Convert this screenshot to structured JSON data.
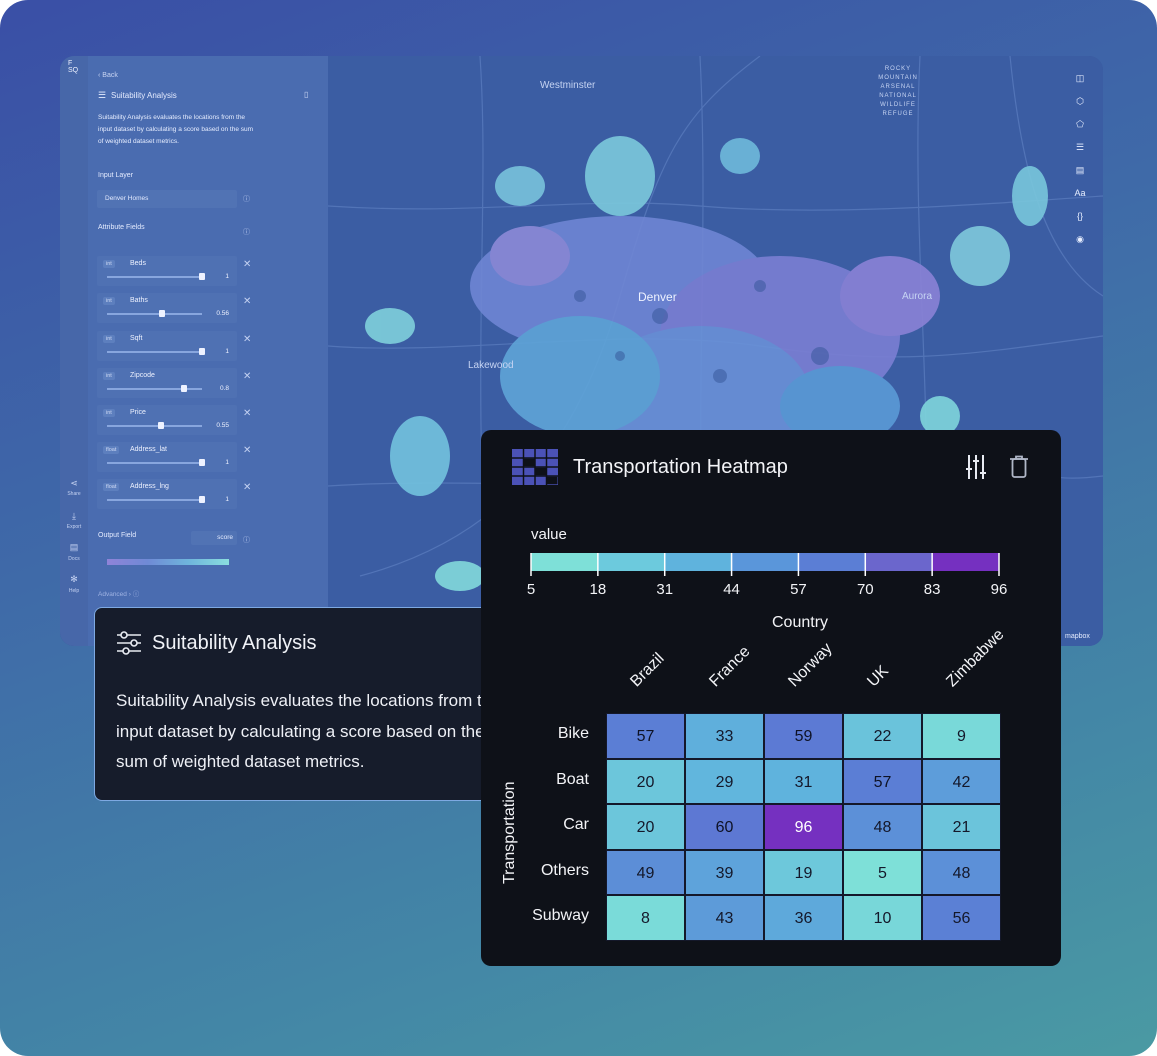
{
  "sidebar": {
    "logo": "F\nSQ",
    "back_label": "Back",
    "panel_title": "Suitability Analysis",
    "description": "Suitability Analysis evaluates the locations from the input dataset by calculating a score based on the sum of weighted dataset metrics.",
    "input_layer_label": "Input Layer",
    "input_layer_value": "Denver Homes",
    "attribute_fields_label": "Attribute Fields",
    "attributes": [
      {
        "type": "int",
        "name": "Beds",
        "value": "1",
        "level": 1.0
      },
      {
        "type": "int",
        "name": "Baths",
        "value": "0.56",
        "level": 0.56
      },
      {
        "type": "int",
        "name": "Sqft",
        "value": "1",
        "level": 1.0
      },
      {
        "type": "int",
        "name": "Zipcode",
        "value": "0.8",
        "level": 0.8
      },
      {
        "type": "int",
        "name": "Price",
        "value": "0.55",
        "level": 0.55
      },
      {
        "type": "float",
        "name": "Address_lat",
        "value": "1",
        "level": 1.0
      },
      {
        "type": "float",
        "name": "Address_lng",
        "value": "1",
        "level": 1.0
      }
    ],
    "output_field_label": "Output Field",
    "output_field_value": "score",
    "advanced_label": "Advanced",
    "rail": {
      "share": "Share",
      "export": "Export",
      "docs": "Docs",
      "help": "Help"
    }
  },
  "map": {
    "labels": {
      "westminster": "Westminster",
      "denver": "Denver",
      "lakewood": "Lakewood",
      "aurora": "Aurora",
      "refuge": [
        "ROCKY",
        "MOUNTAIN",
        "ARSENAL",
        "NATIONAL",
        "WILDLIFE",
        "REFUGE"
      ]
    },
    "attribution": "mapbox",
    "toolbar_icons": [
      "split-map-icon",
      "3d-cube-icon",
      "draw-polygon-icon",
      "layers-list-icon",
      "legend-icon",
      "text-label-icon",
      "json-braces-icon",
      "eye-icon"
    ]
  },
  "suitability_card": {
    "title": "Suitability Analysis",
    "description": "Suitability Analysis evaluates the locations from the input dataset by calculating a score based on the sum of weighted dataset metrics."
  },
  "heatmap_card": {
    "title": "Transportation Heatmap",
    "legend_title": "value",
    "legend_ticks": [
      "5",
      "18",
      "31",
      "44",
      "57",
      "70",
      "83",
      "96"
    ],
    "legend_colors": [
      "#7ee0d8",
      "#6ccadd",
      "#5fb3dd",
      "#5a96da",
      "#5b7ed5",
      "#6b66cc",
      "#7530c0"
    ],
    "x_title": "Country",
    "y_title": "Transportation"
  },
  "chart_data": {
    "type": "heatmap",
    "title": "Transportation Heatmap",
    "xlabel": "Country",
    "ylabel": "Transportation",
    "columns": [
      "Brazil",
      "France",
      "Norway",
      "UK",
      "Zimbabwe"
    ],
    "rows": [
      "Bike",
      "Boat",
      "Car",
      "Others",
      "Subway"
    ],
    "values": [
      [
        57,
        33,
        59,
        22,
        9
      ],
      [
        20,
        29,
        31,
        57,
        42
      ],
      [
        20,
        60,
        96,
        48,
        21
      ],
      [
        49,
        39,
        19,
        5,
        48
      ],
      [
        8,
        43,
        36,
        10,
        56
      ]
    ],
    "range": [
      5,
      96
    ]
  }
}
